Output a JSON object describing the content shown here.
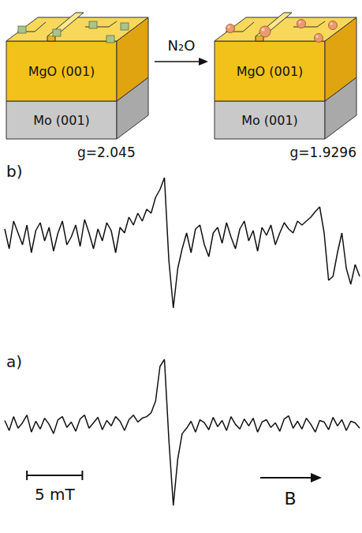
{
  "schematic": {
    "reagent": "N₂O",
    "layers": [
      "MgO (001)",
      "Mo (001)"
    ]
  },
  "chart_data": [
    {
      "type": "line",
      "title": "b)",
      "color": "#111111",
      "grid": false,
      "tick_labels": false,
      "xlim": [
        0,
        32
      ],
      "ylim": [
        -1,
        1
      ],
      "annotations": [
        {
          "text": "g=2.045"
        },
        {
          "text": "g=1.9296"
        }
      ],
      "x": [
        0,
        0.4,
        0.8,
        1.2,
        1.6,
        2,
        2.4,
        2.8,
        3.2,
        3.6,
        4,
        4.4,
        4.8,
        5.2,
        5.6,
        6,
        6.4,
        6.8,
        7.2,
        7.6,
        8,
        8.4,
        8.8,
        9.2,
        9.6,
        10,
        10.4,
        10.8,
        11.2,
        11.6,
        12,
        12.4,
        12.8,
        13.2,
        13.6,
        14,
        14.4,
        14.8,
        15.2,
        15.6,
        16,
        16.4,
        16.8,
        17.2,
        17.6,
        18,
        18.4,
        18.8,
        19.2,
        19.6,
        20,
        20.4,
        20.8,
        21.2,
        21.6,
        22,
        22.4,
        22.8,
        23.2,
        23.6,
        24,
        24.4,
        24.8,
        25.2,
        25.6,
        26,
        26.4,
        26.8,
        27.2,
        27.6,
        28,
        28.4,
        28.8,
        29.2,
        29.6,
        30,
        30.4,
        30.8,
        31.2,
        31.6,
        32
      ],
      "values": [
        0.1,
        -0.15,
        0.2,
        0.05,
        -0.1,
        0.15,
        -0.2,
        0.08,
        0.18,
        -0.05,
        0.12,
        -0.18,
        0.05,
        0.2,
        -0.1,
        0.0,
        0.15,
        -0.12,
        0.22,
        0.05,
        -0.15,
        0.1,
        -0.05,
        0.18,
        0.08,
        -0.2,
        0.12,
        0.05,
        0.25,
        0.15,
        0.3,
        0.2,
        0.35,
        0.3,
        0.5,
        0.6,
        0.75,
        -0.3,
        -0.9,
        -0.4,
        -0.15,
        0.05,
        -0.2,
        0.1,
        0.15,
        -0.1,
        -0.25,
        0.05,
        0.12,
        -0.08,
        0.18,
        0.0,
        -0.15,
        0.1,
        0.2,
        -0.05,
        0.08,
        -0.18,
        0.12,
        0.02,
        0.15,
        -0.1,
        0.05,
        0.18,
        0.1,
        0.05,
        0.2,
        0.15,
        0.2,
        0.25,
        0.32,
        0.38,
        0.05,
        -0.55,
        -0.5,
        -0.2,
        0.05,
        -0.4,
        -0.6,
        -0.35,
        -0.5
      ]
    },
    {
      "type": "line",
      "title": "a)",
      "color": "#111111",
      "grid": false,
      "tick_labels": false,
      "xlim": [
        0,
        32
      ],
      "ylim": [
        -1.1,
        1.2
      ],
      "scale_bar": {
        "start": 2,
        "length": 5,
        "label": "5 mT"
      },
      "field_label": "B",
      "x": [
        0,
        0.4,
        0.8,
        1.2,
        1.6,
        2,
        2.4,
        2.8,
        3.2,
        3.6,
        4,
        4.4,
        4.8,
        5.2,
        5.6,
        6,
        6.4,
        6.8,
        7.2,
        7.6,
        8,
        8.4,
        8.8,
        9.2,
        9.6,
        10,
        10.4,
        10.8,
        11.2,
        11.6,
        12,
        12.4,
        12.8,
        13.2,
        13.6,
        14,
        14.4,
        14.8,
        15.2,
        15.6,
        16,
        16.4,
        16.8,
        17.2,
        17.6,
        18,
        18.4,
        18.8,
        19.2,
        19.6,
        20,
        20.4,
        20.8,
        21.2,
        21.6,
        22,
        22.4,
        22.8,
        23.2,
        23.6,
        24,
        24.4,
        24.8,
        25.2,
        25.6,
        26,
        26.4,
        26.8,
        27.2,
        27.6,
        28,
        28.4,
        28.8,
        29.2,
        29.6,
        30,
        30.4,
        30.8,
        31.2,
        31.6,
        32
      ],
      "values": [
        0.05,
        -0.08,
        0.1,
        -0.05,
        0.02,
        0.12,
        -0.1,
        0.04,
        -0.06,
        0.08,
        0.0,
        -0.12,
        0.06,
        0.1,
        -0.04,
        0.03,
        -0.09,
        0.07,
        0.12,
        -0.05,
        0.02,
        0.09,
        -0.07,
        0.05,
        -0.02,
        0.1,
        0.04,
        -0.08,
        0.06,
        0.12,
        0.03,
        0.08,
        0.1,
        0.15,
        0.3,
        0.75,
        0.84,
        -0.2,
        -1.05,
        -0.45,
        -0.12,
        -0.05,
        0.04,
        -0.1,
        0.06,
        0.02,
        -0.07,
        0.09,
        -0.03,
        0.05,
        -0.08,
        0.1,
        0.0,
        -0.06,
        0.07,
        -0.02,
        0.08,
        -0.1,
        0.03,
        0.06,
        -0.04,
        0.02,
        -0.09,
        0.07,
        0.11,
        -0.05,
        0.04,
        -0.06,
        0.08,
        0.0,
        -0.1,
        0.05,
        0.03,
        -0.07,
        0.09,
        -0.02,
        0.06,
        -0.08,
        0.04,
        0.02,
        -0.05
      ]
    }
  ]
}
